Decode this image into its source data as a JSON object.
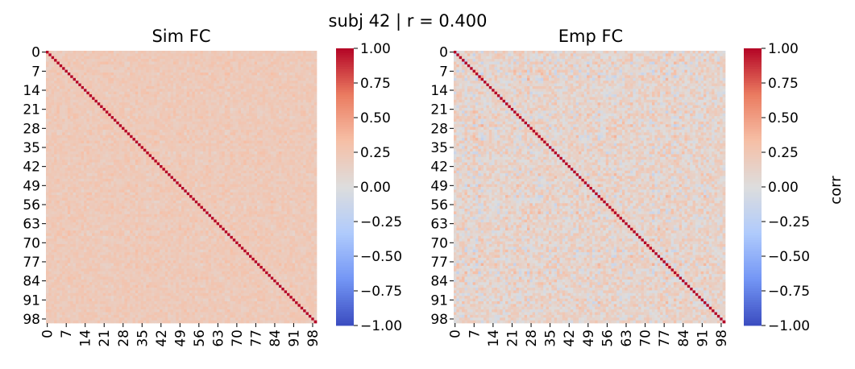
{
  "suptitle": "subj 42 | r = 0.400",
  "colormap": {
    "name": "coolwarm",
    "vmin": -1.0,
    "vmax": 1.0,
    "stops": [
      "#3b4cc0",
      "#7396f5",
      "#b0cbfc",
      "#dddddd",
      "#f6bfa6",
      "#ea7b60",
      "#b40426"
    ]
  },
  "chart_data": [
    {
      "type": "heatmap",
      "title": "Sim FC",
      "n": 100,
      "diagonal_value": 1.0,
      "mean_offdiag": 0.22,
      "spread": 0.12,
      "seed": 1,
      "tick_labels": [
        "0",
        "7",
        "14",
        "21",
        "28",
        "35",
        "42",
        "49",
        "56",
        "63",
        "70",
        "77",
        "84",
        "91",
        "98"
      ],
      "colorbar": {
        "label": "",
        "ticks": [
          1.0,
          0.75,
          0.5,
          0.25,
          0.0,
          -0.25,
          -0.5,
          -0.75,
          -1.0
        ],
        "tick_labels": [
          "1.00",
          "0.75",
          "0.50",
          "0.25",
          "0.00",
          "−0.25",
          "−0.50",
          "−0.75",
          "−1.00"
        ]
      }
    },
    {
      "type": "heatmap",
      "title": "Emp FC",
      "n": 100,
      "diagonal_value": 1.0,
      "mean_offdiag": 0.1,
      "spread": 0.3,
      "seed": 7,
      "tick_labels": [
        "0",
        "7",
        "14",
        "21",
        "28",
        "35",
        "42",
        "49",
        "56",
        "63",
        "70",
        "77",
        "84",
        "91",
        "98"
      ],
      "colorbar": {
        "label": "corr",
        "ticks": [
          1.0,
          0.75,
          0.5,
          0.25,
          0.0,
          -0.25,
          -0.5,
          -0.75,
          -1.0
        ],
        "tick_labels": [
          "1.00",
          "0.75",
          "0.50",
          "0.25",
          "0.00",
          "−0.25",
          "−0.50",
          "−0.75",
          "−1.00"
        ]
      }
    }
  ]
}
